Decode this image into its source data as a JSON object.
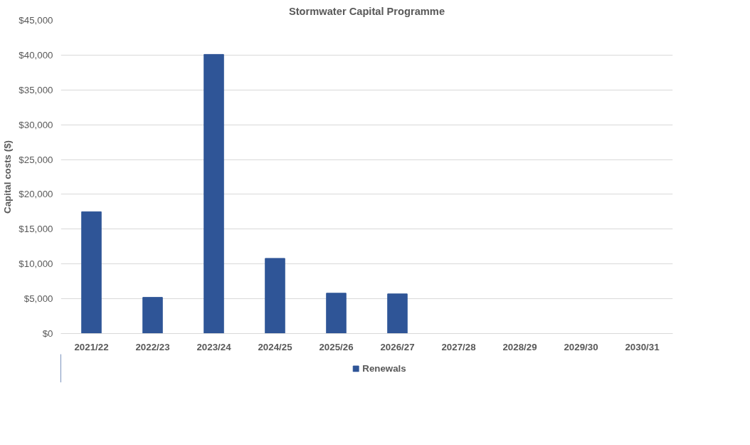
{
  "chart_data": {
    "type": "bar",
    "title": "Stormwater Capital Programme",
    "ylabel": "Capital costs ($)",
    "categories": [
      "2021/22",
      "2022/23",
      "2023/24",
      "2024/25",
      "2025/26",
      "2026/27",
      "2027/28",
      "2028/29",
      "2029/30",
      "2030/31"
    ],
    "series": [
      {
        "name": "Renewals",
        "color": "#2f5597",
        "values": [
          17500,
          5200,
          40100,
          10800,
          5800,
          5700,
          0,
          0,
          0,
          0
        ]
      }
    ],
    "ylim": [
      0,
      45000
    ],
    "yticks": [
      {
        "value": 0,
        "label": "$0"
      },
      {
        "value": 5000,
        "label": "$5,000"
      },
      {
        "value": 10000,
        "label": "$10,000"
      },
      {
        "value": 15000,
        "label": "$15,000"
      },
      {
        "value": 20000,
        "label": "$20,000"
      },
      {
        "value": 25000,
        "label": "$25,000"
      },
      {
        "value": 30000,
        "label": "$30,000"
      },
      {
        "value": 35000,
        "label": "$35,000"
      },
      {
        "value": 40000,
        "label": "$40,000"
      },
      {
        "value": 45000,
        "label": "$45,000"
      }
    ],
    "grid": "y",
    "legend": "bottom"
  }
}
